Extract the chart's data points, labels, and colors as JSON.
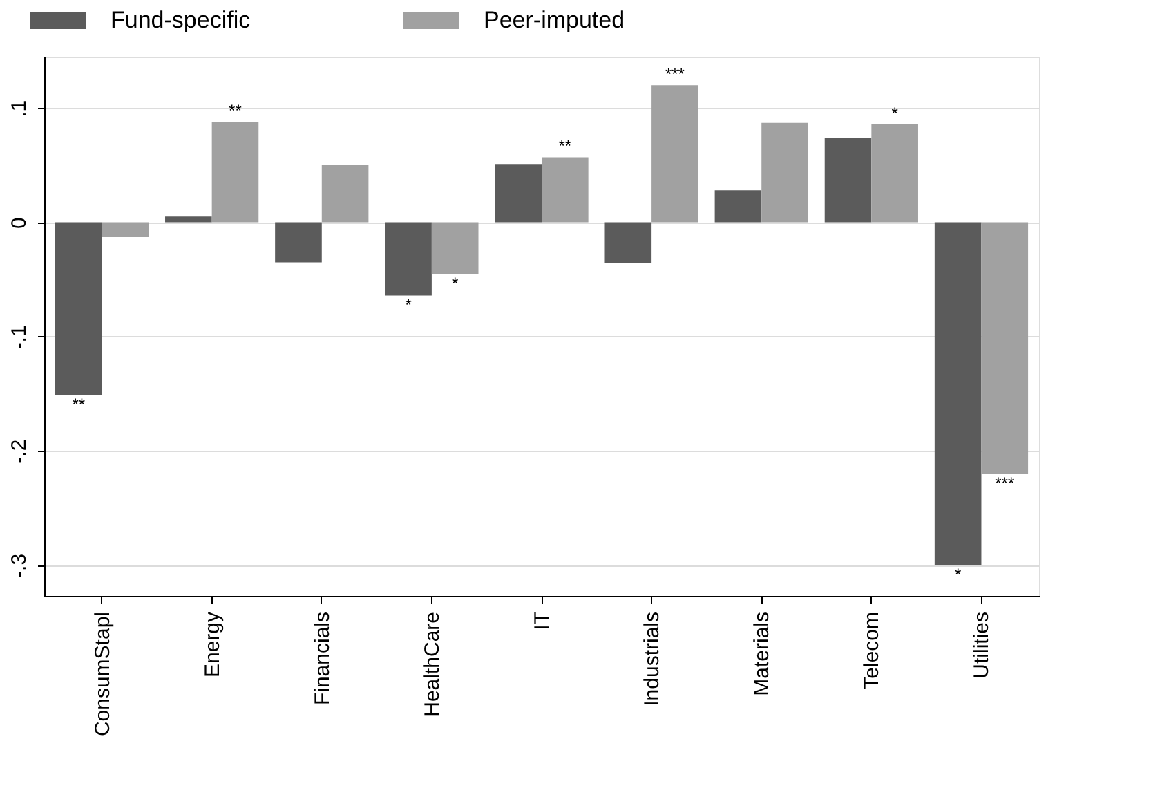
{
  "chart_data": {
    "type": "bar",
    "categories": [
      "ConsumStapl",
      "Energy",
      "Financials",
      "HealthCare",
      "IT",
      "Industrials",
      "Materials",
      "Telecom",
      "Utilities"
    ],
    "series": [
      {
        "name": "Fund-specific",
        "color": "#5b5b5b",
        "values": [
          -0.151,
          0.005,
          -0.035,
          -0.064,
          0.051,
          -0.036,
          0.028,
          0.074,
          -0.3
        ]
      },
      {
        "name": "Peer-imputed",
        "color": "#a1a1a1",
        "values": [
          -0.013,
          0.088,
          0.05,
          -0.045,
          0.057,
          0.12,
          0.087,
          0.086,
          -0.22
        ]
      }
    ],
    "ylim": [
      -0.327,
      0.145
    ],
    "yticks": [
      {
        "value": -0.3,
        "label": "-.3"
      },
      {
        "value": -0.2,
        "label": "-.2"
      },
      {
        "value": -0.1,
        "label": "-.1"
      },
      {
        "value": 0,
        "label": "0"
      },
      {
        "value": 0.1,
        "label": ".1"
      }
    ],
    "grid": "y",
    "legend": "top",
    "annotations": [
      {
        "text": "**",
        "x": "ConsumStapl",
        "y": -0.151
      },
      {
        "text": "**",
        "x": "Energy",
        "y": 0.088
      },
      {
        "text": "*",
        "x": "HealthCare",
        "y": -0.064
      },
      {
        "text": "*",
        "x": "HealthCare",
        "y": -0.045
      },
      {
        "text": "**",
        "x": "IT",
        "y": 0.057
      },
      {
        "text": "***",
        "x": "Industrials",
        "y": 0.12
      },
      {
        "text": "*",
        "x": "Telecom",
        "y": 0.086
      },
      {
        "text": "*",
        "x": "Utilities",
        "y": -0.3
      },
      {
        "text": "***",
        "x": "Utilities",
        "y": -0.22
      }
    ]
  }
}
